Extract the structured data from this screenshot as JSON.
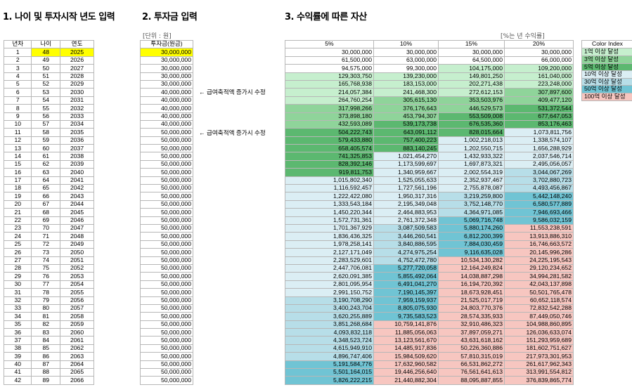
{
  "titles": {
    "sec1": "1. 나이 및 투자시작 년도 입력",
    "sec2": "2. 투자금 입력",
    "sec3": "3. 수익률에 따른 자산"
  },
  "notes": {
    "unit": "[단위 : 원]",
    "rate_label": "[%는 년 수익률]",
    "arrow1": "← 급여축적액 증가시 수정",
    "arrow2": "← 급여축적액 증가시 수정"
  },
  "table1": {
    "headers": [
      "년차",
      "나이",
      "연도"
    ],
    "rows": [
      [
        "1",
        "48",
        "2025"
      ],
      [
        "2",
        "49",
        "2026"
      ],
      [
        "3",
        "50",
        "2027"
      ],
      [
        "4",
        "51",
        "2028"
      ],
      [
        "5",
        "52",
        "2029"
      ],
      [
        "6",
        "53",
        "2030"
      ],
      [
        "7",
        "54",
        "2031"
      ],
      [
        "8",
        "55",
        "2032"
      ],
      [
        "9",
        "56",
        "2033"
      ],
      [
        "10",
        "57",
        "2034"
      ],
      [
        "11",
        "58",
        "2035"
      ],
      [
        "12",
        "59",
        "2036"
      ],
      [
        "13",
        "60",
        "2037"
      ],
      [
        "14",
        "61",
        "2038"
      ],
      [
        "15",
        "62",
        "2039"
      ],
      [
        "16",
        "63",
        "2040"
      ],
      [
        "17",
        "64",
        "2041"
      ],
      [
        "18",
        "65",
        "2042"
      ],
      [
        "19",
        "66",
        "2043"
      ],
      [
        "20",
        "67",
        "2044"
      ],
      [
        "21",
        "68",
        "2045"
      ],
      [
        "22",
        "69",
        "2046"
      ],
      [
        "23",
        "70",
        "2047"
      ],
      [
        "24",
        "71",
        "2048"
      ],
      [
        "25",
        "72",
        "2049"
      ],
      [
        "26",
        "73",
        "2050"
      ],
      [
        "27",
        "74",
        "2051"
      ],
      [
        "28",
        "75",
        "2052"
      ],
      [
        "29",
        "76",
        "2053"
      ],
      [
        "30",
        "77",
        "2054"
      ],
      [
        "31",
        "78",
        "2055"
      ],
      [
        "32",
        "79",
        "2056"
      ],
      [
        "33",
        "80",
        "2057"
      ],
      [
        "34",
        "81",
        "2058"
      ],
      [
        "35",
        "82",
        "2059"
      ],
      [
        "36",
        "83",
        "2060"
      ],
      [
        "37",
        "84",
        "2061"
      ],
      [
        "38",
        "85",
        "2062"
      ],
      [
        "39",
        "86",
        "2063"
      ],
      [
        "40",
        "87",
        "2064"
      ],
      [
        "41",
        "88",
        "2065"
      ],
      [
        "42",
        "89",
        "2066"
      ]
    ]
  },
  "table2": {
    "header": "투자금(원금)",
    "values": [
      "30,000,000",
      "30,000,000",
      "30,000,000",
      "30,000,000",
      "30,000,000",
      "40,000,000",
      "40,000,000",
      "40,000,000",
      "40,000,000",
      "40,000,000",
      "50,000,000",
      "50,000,000",
      "50,000,000",
      "50,000,000",
      "50,000,000",
      "50,000,000",
      "50,000,000",
      "50,000,000",
      "50,000,000",
      "50,000,000",
      "50,000,000",
      "50,000,000",
      "50,000,000",
      "50,000,000",
      "50,000,000",
      "50,000,000",
      "50,000,000",
      "50,000,000",
      "50,000,000",
      "50,000,000",
      "50,000,000",
      "50,000,000",
      "50,000,000",
      "50,000,000",
      "50,000,000",
      "50,000,000",
      "50,000,000",
      "50,000,000",
      "50,000,000",
      "50,000,000",
      "50,000,000",
      "50,000,000"
    ]
  },
  "table3": {
    "headers": [
      "5%",
      "10%",
      "15%",
      "20%"
    ],
    "rows": [
      [
        "30,000,000",
        "30,000,000",
        "30,000,000",
        "30,000,000"
      ],
      [
        "61,500,000",
        "63,000,000",
        "64,500,000",
        "66,000,000"
      ],
      [
        "94,575,000",
        "99,300,000",
        "104,175,000",
        "109,200,000"
      ],
      [
        "129,303,750",
        "139,230,000",
        "149,801,250",
        "161,040,000"
      ],
      [
        "165,768,938",
        "183,153,000",
        "202,271,438",
        "223,248,000"
      ],
      [
        "214,057,384",
        "241,468,300",
        "272,612,153",
        "307,897,600"
      ],
      [
        "264,760,254",
        "305,615,130",
        "353,503,976",
        "409,477,120"
      ],
      [
        "317,998,266",
        "376,176,643",
        "446,529,573",
        "531,372,544"
      ],
      [
        "373,898,180",
        "453,794,307",
        "553,509,008",
        "677,647,053"
      ],
      [
        "432,593,089",
        "539,173,738",
        "676,535,360",
        "853,176,463"
      ],
      [
        "504,222,743",
        "643,091,112",
        "828,015,664",
        "1,073,811,756"
      ],
      [
        "579,433,880",
        "757,400,223",
        "1,002,218,013",
        "1,338,574,107"
      ],
      [
        "658,405,574",
        "883,140,245",
        "1,202,550,715",
        "1,656,288,929"
      ],
      [
        "741,325,853",
        "1,021,454,270",
        "1,432,933,322",
        "2,037,546,714"
      ],
      [
        "828,392,146",
        "1,173,599,697",
        "1,697,873,321",
        "2,495,056,057"
      ],
      [
        "919,811,753",
        "1,340,959,667",
        "2,002,554,319",
        "3,044,067,269"
      ],
      [
        "1,015,802,340",
        "1,525,055,633",
        "2,352,937,467",
        "3,702,880,723"
      ],
      [
        "1,116,592,457",
        "1,727,561,196",
        "2,755,878,087",
        "4,493,456,867"
      ],
      [
        "1,222,422,080",
        "1,950,317,316",
        "3,219,259,800",
        "5,442,148,240"
      ],
      [
        "1,333,543,184",
        "2,195,349,048",
        "3,752,148,770",
        "6,580,577,889"
      ],
      [
        "1,450,220,344",
        "2,464,883,953",
        "4,364,971,085",
        "7,946,693,466"
      ],
      [
        "1,572,731,361",
        "2,761,372,348",
        "5,069,716,748",
        "9,586,032,159"
      ],
      [
        "1,701,367,929",
        "3,087,509,583",
        "5,880,174,260",
        "11,553,238,591"
      ],
      [
        "1,836,436,325",
        "3,446,260,541",
        "6,812,200,399",
        "13,913,886,310"
      ],
      [
        "1,978,258,141",
        "3,840,886,595",
        "7,884,030,459",
        "16,746,663,572"
      ],
      [
        "2,127,171,049",
        "4,274,975,254",
        "9,116,635,028",
        "20,145,996,286"
      ],
      [
        "2,283,529,601",
        "4,752,472,780",
        "10,534,130,282",
        "24,225,195,543"
      ],
      [
        "2,447,706,081",
        "5,277,720,058",
        "12,164,249,824",
        "29,120,234,652"
      ],
      [
        "2,620,091,385",
        "5,855,492,064",
        "14,038,887,298",
        "34,994,281,582"
      ],
      [
        "2,801,095,954",
        "6,491,041,270",
        "16,194,720,392",
        "42,043,137,898"
      ],
      [
        "2,991,150,752",
        "7,190,145,397",
        "18,673,928,451",
        "50,501,765,478"
      ],
      [
        "3,190,708,290",
        "7,959,159,937",
        "21,525,017,719",
        "60,652,118,574"
      ],
      [
        "3,400,243,704",
        "8,805,075,930",
        "24,803,770,376",
        "72,832,542,288"
      ],
      [
        "3,620,255,889",
        "9,735,583,523",
        "28,574,335,933",
        "87,449,050,746"
      ],
      [
        "3,851,268,684",
        "10,759,141,876",
        "32,910,486,323",
        "104,988,860,895"
      ],
      [
        "4,093,832,118",
        "11,885,056,063",
        "37,897,059,271",
        "126,036,633,074"
      ],
      [
        "4,348,523,724",
        "13,123,561,670",
        "43,631,618,162",
        "151,293,959,689"
      ],
      [
        "4,615,949,910",
        "14,485,917,836",
        "50,226,360,886",
        "181,602,751,627"
      ],
      [
        "4,896,747,406",
        "15,984,509,620",
        "57,810,315,019",
        "217,973,301,953"
      ],
      [
        "5,191,584,776",
        "17,632,960,582",
        "66,531,862,272",
        "261,617,962,343"
      ],
      [
        "5,501,164,015",
        "19,446,256,640",
        "76,561,641,613",
        "313,991,554,812"
      ],
      [
        "5,826,222,215",
        "21,440,882,304",
        "88,095,887,855",
        "376,839,865,774"
      ]
    ]
  },
  "legend": {
    "header": "Color Index",
    "items": [
      {
        "label": "1억 이상 달성",
        "color": "#c6efce"
      },
      {
        "label": "3억 이상 달성",
        "color": "#8fd49a"
      },
      {
        "label": "5억 이상 달성",
        "color": "#5cb870"
      },
      {
        "label": "10억 이상 달성",
        "color": "#dbeef4"
      },
      {
        "label": "30억 이상 달성",
        "color": "#b7dee8"
      },
      {
        "label": "50억 이상 달성",
        "color": "#70c4d4"
      },
      {
        "label": "100억 이상 달성",
        "color": "#f7c6c0"
      }
    ]
  },
  "colors": {
    "highlight": "#ffff00",
    "header_border": "#7f7f7f"
  }
}
